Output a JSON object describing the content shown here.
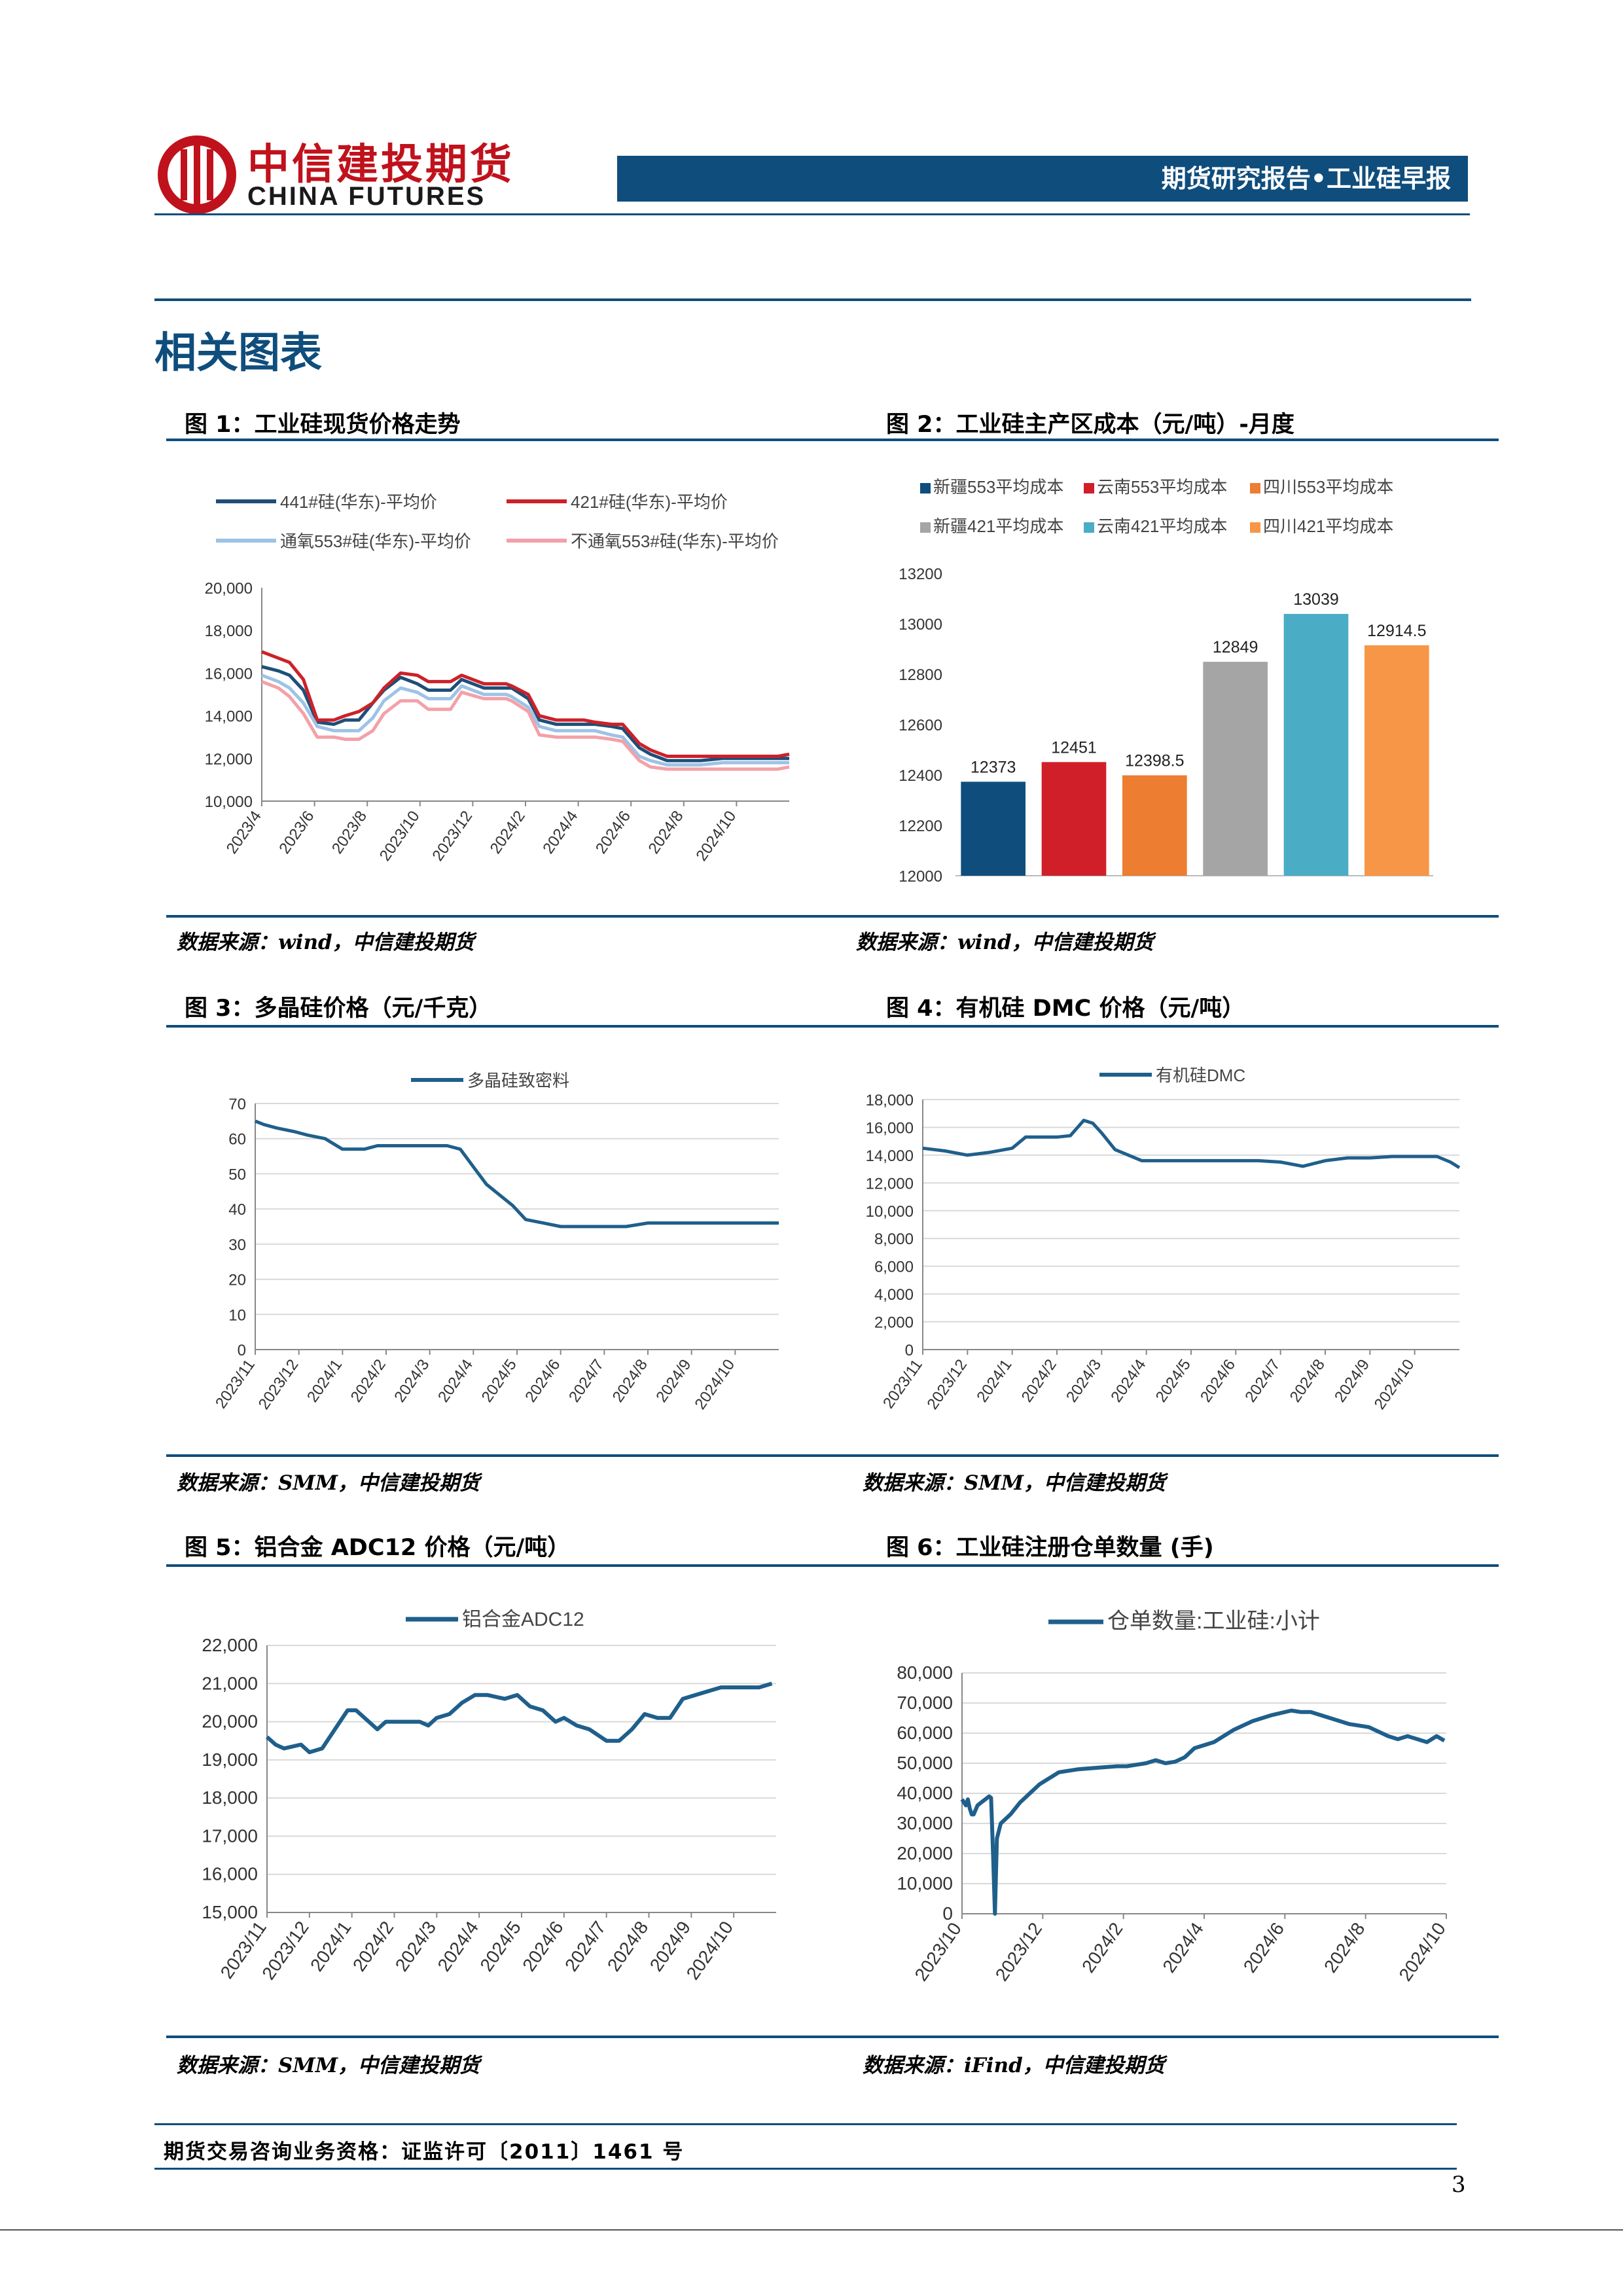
{
  "header": {
    "logo_cn": "中信建投期货",
    "logo_en": "CHINA FUTURES",
    "banner": "期货研究报告•工业硅早报"
  },
  "section_title": "相关图表",
  "colors": {
    "primary": "#0f4d7c",
    "brand_red": "#c0121c"
  },
  "figures": [
    {
      "title": "图 1：工业硅现货价格走势",
      "source": "数据来源：wind，中信建投期货",
      "chart_data": {
        "type": "line",
        "title": "",
        "y_ticks": [
          "20,000",
          "18,000",
          "16,000",
          "14,000",
          "12,000",
          "10,000"
        ],
        "ylim": [
          10000,
          20000
        ],
        "x_ticks": [
          "2023/4",
          "2023/6",
          "2023/8",
          "2023/10",
          "2023/12",
          "2024/2",
          "2024/4",
          "2024/6",
          "2024/8",
          "2024/10"
        ],
        "x_range": [
          0,
          19
        ],
        "series": [
          {
            "name": "441#硅(华东)-平均价",
            "color": "#1f4e79",
            "x": [
              0,
              0.6,
              1.0,
              1.5,
              2.0,
              2.6,
              3.0,
              3.5,
              4.0,
              4.4,
              5.0,
              5.6,
              6.0,
              6.8,
              7.2,
              8.0,
              8.8,
              9.0,
              9.6,
              10.0,
              10.6,
              11.2,
              11.6,
              12.0,
              12.6,
              13.0,
              13.6,
              14.0,
              14.6,
              15.0,
              15.4,
              15.8,
              16.6,
              17.0,
              17.6,
              18.0,
              18.6,
              19.0
            ],
            "values": [
              16300,
              16100,
              15900,
              15200,
              13700,
              13600,
              13800,
              13800,
              14600,
              15200,
              15800,
              15500,
              15200,
              15200,
              15700,
              15300,
              15300,
              15300,
              14800,
              13800,
              13600,
              13600,
              13600,
              13600,
              13500,
              13400,
              12500,
              12200,
              11900,
              11900,
              11900,
              11900,
              12000,
              12000,
              12000,
              12000,
              12000,
              12000
            ]
          },
          {
            "name": "421#硅(华东)-平均价",
            "color": "#cc2128",
            "x": [
              0,
              0.6,
              1.0,
              1.5,
              2.0,
              2.6,
              3.0,
              3.5,
              4.0,
              4.4,
              5.0,
              5.6,
              6.0,
              6.8,
              7.2,
              8.0,
              8.8,
              9.0,
              9.6,
              10.0,
              10.6,
              11.2,
              11.6,
              12.0,
              12.6,
              13.0,
              13.6,
              14.0,
              14.6,
              15.0,
              15.4,
              15.8,
              16.6,
              17.0,
              17.6,
              18.0,
              18.6,
              19.0
            ],
            "values": [
              17000,
              16700,
              16500,
              15700,
              13800,
              13800,
              14000,
              14200,
              14600,
              15300,
              16000,
              15900,
              15600,
              15600,
              15900,
              15500,
              15500,
              15400,
              15000,
              14000,
              13800,
              13800,
              13800,
              13700,
              13600,
              13600,
              12700,
              12400,
              12100,
              12100,
              12100,
              12100,
              12100,
              12100,
              12100,
              12100,
              12100,
              12200
            ]
          },
          {
            "name": "通氧553#硅(华东)-平均价",
            "color": "#9dc3e6",
            "x": [
              0,
              0.6,
              1.0,
              1.5,
              2.0,
              2.6,
              3.0,
              3.5,
              4.0,
              4.4,
              5.0,
              5.6,
              6.0,
              6.8,
              7.2,
              8.0,
              8.8,
              9.0,
              9.6,
              10.0,
              10.6,
              11.2,
              11.6,
              12.0,
              12.6,
              13.0,
              13.6,
              14.0,
              14.6,
              15.0,
              15.4,
              15.8,
              16.6,
              17.0,
              17.6,
              18.0,
              18.6,
              19.0
            ],
            "values": [
              15900,
              15600,
              15300,
              14600,
              13500,
              13300,
              13300,
              13300,
              13900,
              14700,
              15300,
              15100,
              14800,
              14800,
              15400,
              15000,
              15000,
              14900,
              14400,
              13500,
              13300,
              13300,
              13300,
              13300,
              13100,
              13000,
              12100,
              11900,
              11700,
              11700,
              11700,
              11700,
              11800,
              11800,
              11800,
              11800,
              11800,
              11800
            ]
          },
          {
            "name": "不通氧553#硅(华东)-平均价",
            "color": "#f4a0a8",
            "x": [
              0,
              0.6,
              1.0,
              1.5,
              2.0,
              2.6,
              3.0,
              3.5,
              4.0,
              4.4,
              5.0,
              5.6,
              6.0,
              6.8,
              7.2,
              8.0,
              8.8,
              9.0,
              9.6,
              10.0,
              10.6,
              11.2,
              11.6,
              12.0,
              12.6,
              13.0,
              13.6,
              14.0,
              14.6,
              15.0,
              15.4,
              15.8,
              16.6,
              17.0,
              17.6,
              18.0,
              18.6,
              19.0
            ],
            "values": [
              15600,
              15300,
              14900,
              14100,
              13000,
              13000,
              12900,
              12900,
              13300,
              14100,
              14700,
              14700,
              14300,
              14300,
              15100,
              14800,
              14800,
              14700,
              14200,
              13100,
              13000,
              13000,
              13000,
              13000,
              12900,
              12800,
              11900,
              11600,
              11500,
              11500,
              11500,
              11500,
              11500,
              11500,
              11500,
              11500,
              11500,
              11600
            ]
          }
        ]
      }
    },
    {
      "title": "图 2：工业硅主产区成本（元/吨）-月度",
      "source": "数据来源：wind，中信建投期货",
      "chart_data": {
        "type": "bar",
        "categories": [
          "新疆553平均成本",
          "云南553平均成本",
          "四川553平均成本",
          "新疆421平均成本",
          "云南421平均成本",
          "四川421平均成本"
        ],
        "values": [
          12373,
          12451,
          12398.5,
          12849,
          13039,
          12914.5
        ],
        "value_labels": [
          "12373",
          "12451",
          "12398.5",
          "12849",
          "13039",
          "12914.5"
        ],
        "colors": [
          "#0f4d7c",
          "#d11f2a",
          "#ed7d31",
          "#a5a5a5",
          "#4bacc6",
          "#f79646"
        ],
        "y_ticks": [
          "13200",
          "13000",
          "12800",
          "12600",
          "12400",
          "12200",
          "12000"
        ],
        "ylim": [
          12000,
          13200
        ]
      }
    },
    {
      "title": "图 3：多晶硅价格（元/千克）",
      "source": "数据来源：SMM，中信建投期货",
      "chart_data": {
        "type": "line",
        "series": [
          {
            "name": "多晶硅致密料",
            "color": "#1f5f8b",
            "x": [
              0,
              0.2,
              0.5,
              0.9,
              1.2,
              1.6,
              2.0,
              2.5,
              2.8,
              3.2,
              3.6,
              4.0,
              4.4,
              4.7,
              5.0,
              5.3,
              5.6,
              5.9,
              6.2,
              6.6,
              7.0,
              7.5,
              8.0,
              8.5,
              9.0,
              9.5,
              10.0,
              10.5,
              11.0,
              11.5,
              12.0
            ],
            "values": [
              65,
              64,
              63,
              62,
              61,
              60,
              57,
              57,
              58,
              58,
              58,
              58,
              58,
              57,
              52,
              47,
              44,
              41,
              37,
              36,
              35,
              35,
              35,
              35,
              36,
              36,
              36,
              36,
              36,
              36,
              36
            ]
          }
        ],
        "y_ticks": [
          "70",
          "60",
          "50",
          "40",
          "30",
          "20",
          "10",
          "0"
        ],
        "ylim": [
          0,
          70
        ],
        "x_ticks": [
          "2023/11",
          "2023/12",
          "2024/1",
          "2024/2",
          "2024/3",
          "2024/4",
          "2024/5",
          "2024/6",
          "2024/7",
          "2024/8",
          "2024/9",
          "2024/10"
        ],
        "x_range": [
          0,
          12
        ]
      }
    },
    {
      "title": "图 4：有机硅 DMC 价格（元/吨）",
      "source": "数据来源：SMM，中信建投期货",
      "chart_data": {
        "type": "line",
        "series": [
          {
            "name": "有机硅DMC",
            "color": "#1f5f8b",
            "x": [
              0,
              0.5,
              1.0,
              1.5,
              2.0,
              2.3,
              2.6,
              3.0,
              3.3,
              3.6,
              3.8,
              4.0,
              4.3,
              4.6,
              4.9,
              5.2,
              5.6,
              6.0,
              6.5,
              7.0,
              7.5,
              8.0,
              8.5,
              9.0,
              9.5,
              10.0,
              10.5,
              11.0,
              11.5,
              11.8,
              12.0
            ],
            "values": [
              14500,
              14300,
              14000,
              14200,
              14500,
              15300,
              15300,
              15300,
              15400,
              16500,
              16300,
              15600,
              14400,
              14000,
              13600,
              13600,
              13600,
              13600,
              13600,
              13600,
              13600,
              13500,
              13200,
              13600,
              13800,
              13800,
              13900,
              13900,
              13900,
              13500,
              13100
            ]
          }
        ],
        "y_ticks": [
          "18,000",
          "16,000",
          "14,000",
          "12,000",
          "10,000",
          "8,000",
          "6,000",
          "4,000",
          "2,000",
          "0"
        ],
        "ylim": [
          0,
          18000
        ],
        "x_ticks": [
          "2023/11",
          "2023/12",
          "2024/1",
          "2024/2",
          "2024/3",
          "2024/4",
          "2024/5",
          "2024/6",
          "2024/7",
          "2024/8",
          "2024/9",
          "2024/10"
        ],
        "x_range": [
          0,
          12
        ]
      }
    },
    {
      "title": "图 5：铝合金 ADC12 价格（元/吨）",
      "source": "数据来源：SMM，中信建投期货",
      "chart_data": {
        "type": "line",
        "series": [
          {
            "name": "铝合金ADC12",
            "color": "#1f5f8b",
            "x": [
              0,
              0.2,
              0.4,
              0.8,
              1.0,
              1.3,
              1.6,
              1.9,
              2.1,
              2.3,
              2.6,
              2.8,
              3.0,
              3.3,
              3.6,
              3.8,
              4.0,
              4.3,
              4.6,
              4.9,
              5.2,
              5.6,
              5.9,
              6.2,
              6.5,
              6.8,
              7.0,
              7.3,
              7.6,
              8.0,
              8.3,
              8.6,
              8.9,
              9.2,
              9.5,
              9.8,
              10.1,
              10.4,
              10.7,
              11.0,
              11.3,
              11.6,
              11.9
            ],
            "values": [
              19600,
              19400,
              19300,
              19400,
              19200,
              19300,
              19800,
              20300,
              20300,
              20100,
              19800,
              20000,
              20000,
              20000,
              20000,
              19900,
              20100,
              20200,
              20500,
              20700,
              20700,
              20600,
              20700,
              20400,
              20300,
              20000,
              20100,
              19900,
              19800,
              19500,
              19500,
              19800,
              20200,
              20100,
              20100,
              20600,
              20700,
              20800,
              20900,
              20900,
              20900,
              20900,
              21000
            ]
          }
        ],
        "y_ticks": [
          "22,000",
          "21,000",
          "20,000",
          "19,000",
          "18,000",
          "17,000",
          "16,000",
          "15,000"
        ],
        "ylim": [
          15000,
          22000
        ],
        "x_ticks": [
          "2023/11",
          "2023/12",
          "2024/1",
          "2024/2",
          "2024/3",
          "2024/4",
          "2024/5",
          "2024/6",
          "2024/7",
          "2024/8",
          "2024/9",
          "2024/10"
        ],
        "x_range": [
          0,
          12
        ]
      }
    },
    {
      "title": "图 6：工业硅注册仓单数量 (手)",
      "source": "数据来源：iFind，中信建投期货",
      "chart_data": {
        "type": "line",
        "series": [
          {
            "name": "仓单数量:工业硅:小计",
            "color": "#1f5f8b",
            "x": [
              0,
              0.1,
              0.2,
              0.3,
              0.4,
              0.5,
              0.6,
              0.8,
              1.0,
              1.2,
              1.4,
              1.5,
              1.6,
              1.7,
              1.8,
              2.0,
              2.5,
              3.0,
              3.5,
              4.0,
              5.0,
              6.0,
              7.0,
              8.0,
              8.5,
              9.0,
              9.5,
              10.0,
              10.5,
              11.0,
              11.5,
              12.0,
              13.0,
              14.0,
              15.0,
              16.0,
              17.0,
              17.5,
              18.0,
              18.5,
              19.0,
              19.5,
              20.0,
              21.0,
              22.0,
              22.5,
              23.0,
              24.0,
              24.5,
              24.9
            ],
            "values": [
              38000,
              37000,
              36000,
              38000,
              35000,
              33000,
              33000,
              36000,
              37000,
              38000,
              39000,
              38500,
              20000,
              0,
              25000,
              30000,
              33000,
              37000,
              40000,
              43000,
              47000,
              48000,
              48500,
              49000,
              49000,
              49500,
              50000,
              51000,
              50000,
              50500,
              52000,
              55000,
              57000,
              61000,
              64000,
              66000,
              67500,
              67000,
              67000,
              66000,
              65000,
              64000,
              63000,
              62000,
              59000,
              58000,
              59000,
              57000,
              59000,
              57500
            ]
          }
        ],
        "y_ticks": [
          "80,000",
          "70,000",
          "60,000",
          "50,000",
          "40,000",
          "30,000",
          "20,000",
          "10,000",
          "0"
        ],
        "ylim": [
          0,
          80000
        ],
        "x_ticks": [
          "2023/10",
          "2023/12",
          "2024/2",
          "2024/4",
          "2024/6",
          "2024/8",
          "2024/10"
        ],
        "x_range": [
          0,
          25
        ]
      }
    }
  ],
  "footer": {
    "qualification": "期货交易咨询业务资格：证监许可〔2011〕1461 号",
    "page_number": "3"
  }
}
